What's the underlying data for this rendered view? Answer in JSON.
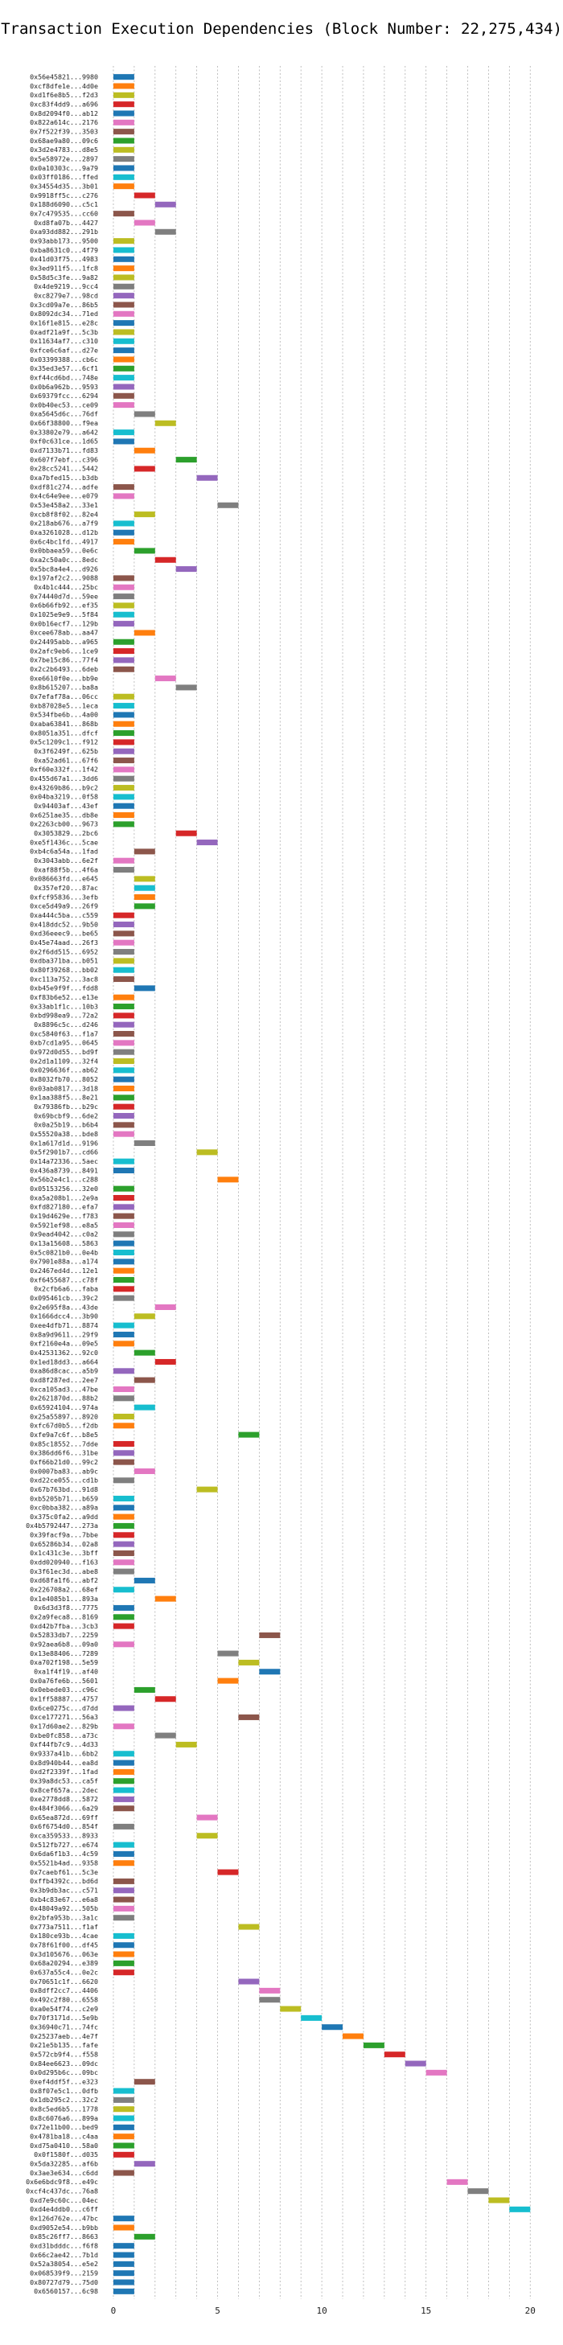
{
  "chart_data": {
    "type": "bar",
    "orientation": "horizontal-gantt",
    "title": "Transaction Execution Dependencies (Block Number: 22,275,434)",
    "xlabel": "",
    "ylabel": "",
    "xlim": [
      -0.5,
      20.8
    ],
    "xticks": [
      0,
      5,
      10,
      15,
      20
    ],
    "grid": "x-dashed",
    "legend": "none",
    "palette": [
      "#1f77b4",
      "#ff7f0e",
      "#2ca02c",
      "#d62728",
      "#9467bd",
      "#8c564b",
      "#e377c2",
      "#7f7f7f",
      "#bcbd22",
      "#17becf"
    ],
    "labels": [
      "0x56e45821...9980",
      "0xcf8dfe1e...4d0e",
      "0xd1f6e8b5...f2d3",
      "0xc83f4dd9...a696",
      "0x8d2094f0...ab12",
      "0x822a614c...2176",
      "0x7f522f39...3503",
      "0x68ae9a80...09c6",
      "0x3d2e4783...d8e5",
      "0x5e58972e...2897",
      "0x0a10303c...9a79",
      "0x03ff0186...ffed",
      "0x34554d35...3b01",
      "0x9918ff5c...c276",
      "0x188d6090...c5c1",
      "0x7c479535...cc60",
      "0xd8fa07b...4427",
      "0xa93dd882...291b",
      "0x93abb173...9500",
      "0xba8631c0...4f79",
      "0x41d03f75...4983",
      "0x3ed911f5...1fc8",
      "0x58d5c3fe...9a82",
      "0x4de9219...9cc4",
      "0xc8279e7...98cd",
      "0x3cd09a7e...86b5",
      "0x8092dc34...71ed",
      "0x16f1e815...e28c",
      "0xadf21a9f...5c3b",
      "0x11634af7...c310",
      "0xfce6c6af...d27e",
      "0x03399388...cb6c",
      "0x35ed3e57...6cf1",
      "0xf44cd6bd...748e",
      "0x0b6a962b...9593",
      "0x69379fcc...6294",
      "0x0b40ec53...ce09",
      "0xa5645d6c...76df",
      "0x66f38800...f9ea",
      "0x33802e79...a642",
      "0xf0c631ce...1d65",
      "0xd7133b71...fd83",
      "0x607f7ebf...c396",
      "0x28cc5241...5442",
      "0xa7bfed15...b3db",
      "0xdf81c274...adfe",
      "0x4c64e9ee...e079",
      "0x53e458a2...33e1",
      "0xcb8f8f02...82e4",
      "0x218ab676...a7f9",
      "0xa3261028...d12b",
      "0x6c4bc1fd...4917",
      "0x0bbaea59...0e6c",
      "0xa2c50a0c...8edc",
      "0x5bc8a4e4...d926",
      "0x197af2c2...9088",
      "0x4b1c444...25bc",
      "0x74440d7d...59ee",
      "0x6b66fb92...ef35",
      "0x1025e9e9...5f84",
      "0x0b16ecf7...129b",
      "0xcee678ab...aa47",
      "0x24495abb...a965",
      "0x2afc9eb6...1ce9",
      "0x7be15c86...77f4",
      "0x2c2b6493...6deb",
      "0xe6610f0e...bb9e",
      "0x8b615207...ba8a",
      "0x7efaf78a...06cc",
      "0xb87028e5...1eca",
      "0x534fbe6b...4a00",
      "0xaba63841...868b",
      "0x8051a351...dfcf",
      "0x5c1209c1...f912",
      "0x3f6249f...625b",
      "0xa52ad61...67f6",
      "0xf60e332f...1f42",
      "0x455d67a1...3dd6",
      "0x43269b86...b9c2",
      "0x04ba3219...0f58",
      "0x94403af...43ef",
      "0x6251ae35...db8e",
      "0x2263cb00...9673",
      "0x3053829...2bc6",
      "0xe5f1436c...5cae",
      "0xb4c6a54a...1fad",
      "0x3043abb...6e2f",
      "0xaf88f5b...4f6a",
      "0x086663fd...e645",
      "0x357ef20...87ac",
      "0xfcf95836...3efb",
      "0xce5d49a9...26f9",
      "0xa444c5ba...c559",
      "0x418ddc52...9b50",
      "0xd36eeec9...be65",
      "0x45e74aad...26f3",
      "0x2f6dd515...6952",
      "0xdba371ba...b051",
      "0x80f39268...bb02",
      "0xc113a752...3ac8",
      "0xb45e9f9f...fdd8",
      "0xf83b6e52...e13e",
      "0x33ab1f1c...10b3",
      "0xbd998ea9...72a2",
      "0x8896c5c...d246",
      "0xc5840f63...f1a7",
      "0xb7cd1a95...0645",
      "0x972d0d55...bd9f",
      "0x2d1a1109...32f4",
      "0x0296636f...ab62",
      "0x8032fb70...8052",
      "0x03ab0817...3d18",
      "0x1aa388f5...8e21",
      "0x79386fb...b29c",
      "0x69bcbf9...6de2",
      "0x0a25b19...b6b4",
      "0x55520a38...bde8",
      "0x1a617d1d...9196",
      "0x5f2901b7...cd66",
      "0x14a72336...5aec",
      "0x436a8739...8491",
      "0x56b2e4c1...c288",
      "0x05153256...32e0",
      "0xa5a208b1...2e9a",
      "0xfd827180...efa7",
      "0x19d4629e...f783",
      "0x5921ef98...e8a5",
      "0x9ead4042...c0a2",
      "0x13a15608...5863",
      "0x5c0821b0...0e4b",
      "0x7901e88a...a174",
      "0x2467ed4d...12e1",
      "0xf6455687...c78f",
      "0x2cfb6a6...faba",
      "0x095461cb...39c2",
      "0x2e695f8a...43de",
      "0x1666dcc4...3b90",
      "0xee4dfb71...8874",
      "0x8a9d9611...29f9",
      "0xf2160e4a...09e5",
      "0x42531362...92c0",
      "0x1ed18dd3...a664",
      "0xa86d8cac...a5b9",
      "0xd8f287ed...2ee7",
      "0xca105ad3...47be",
      "0x2621870d...88b2",
      "0x65924104...974a",
      "0x25a55897...8920",
      "0xfc67d0b5...f2db",
      "0xfe9a7c6f...b8e5",
      "0x85c18552...7dde",
      "0x386dd6f6...31be",
      "0xf66b21d0...99c2",
      "0x0007ba83...ab9c",
      "0xd22ce055...cd1b",
      "0x67b763bd...91d8",
      "0xb5205b71...b659",
      "0xc0bba382...a89a",
      "0x375c0fa2...a9dd",
      "0x4b5792447...273a",
      "0x39facf9a...7bbe",
      "0x65286b34...02a8",
      "0x1c431c3e...3bff",
      "0xdd020940...f163",
      "0x3f61ec3d...abe8",
      "0xd68fa1f6...abf2",
      "0x226708a2...68ef",
      "0x1e4085b1...893a",
      "0x6d3d3f8...7775",
      "0x2a9feca8...8169",
      "0xd42b7fba...3cb3",
      "0x52833db7...2259",
      "0x92aea6b8...09a0",
      "0x13e88406...7289",
      "0xa702f198...5e59",
      "0xa1f4f19...af40",
      "0x0a76fe6b...5601",
      "0x0ebede03...c96c",
      "0x1ff58887...4757",
      "0x6ce0275c...d7dd",
      "0xce177271...56a3",
      "0x17d60ae2...829b",
      "0xbe0fc858...a73c",
      "0xf44fb7c9...4d33",
      "0x9337a41b...6bb2",
      "0x8d940b44...ea8d",
      "0xd2f2339f...1fad",
      "0x39a8dc53...ca5f",
      "0x8cef657a...2dec",
      "0xe2778dd8...5872",
      "0x484f3066...6a29",
      "0x65ea872d...69ff",
      "0x6f6754d0...854f",
      "0xca359533...8933",
      "0x512fb727...e674",
      "0x6da6f1b3...4c59",
      "0x5521b4ad...9358",
      "0x7caebf61...5c3e",
      "0xffb4392c...bd6d",
      "0x3b9db3ac...c571",
      "0xb4c83e67...e6a8",
      "0x48049a92...505b",
      "0x2bfa953b...3a1c",
      "0x773a7511...f1af",
      "0x180ce93b...4cae",
      "0x78f61f00...df45",
      "0x3d105676...063e",
      "0x68a20294...e389",
      "0x637a55c4...0e2c",
      "0x70651c1f...6620",
      "0x8dff2cc7...4406",
      "0x492c2f80...6558",
      "0xa0e54f74...c2e9",
      "0x70f3171d...5e9b",
      "0x36940c71...74fc",
      "0x25237aeb...4e7f",
      "0x21e5b135...fafe",
      "0x572cb9f4...f558",
      "0x84ee6623...09dc",
      "0x0d295b6c...09bc",
      "0xef4ddf5f...e323",
      "0x8f07e5c1...0dfb",
      "0x1db295c2...32c2",
      "0x8c5ed6b5...1778",
      "0x8c6076a6...899a",
      "0x72e11b00...bed9",
      "0x4781ba18...c4aa",
      "0xd75a0410...58a0",
      "0x0f1580f...d035",
      "0x5da32285...af6b",
      "0x3ae3e634...c6dd",
      "0x6e6bdc9f8...e49c",
      "0xcf4c437dc...76a8",
      "0xd7e9c60c...04ec",
      "0xd4e4ddb0...c6ff",
      "0x126d762e...47bc",
      "0xd9052e54...b9bb",
      "0x85c26ff7...8663",
      "0xd31bdddc...f6f8",
      "0x66c2ae42...7b1d",
      "0x52a38054...e5e2",
      "0x068539f9...2159",
      "0x80727d79...75d0",
      "0x6560157...6c98"
    ],
    "bars": [
      [
        0,
        0
      ],
      [
        0,
        1
      ],
      [
        0,
        8
      ],
      [
        0,
        3
      ],
      [
        0,
        0
      ],
      [
        0,
        6
      ],
      [
        0,
        5
      ],
      [
        0,
        2
      ],
      [
        0,
        8
      ],
      [
        0,
        7
      ],
      [
        0,
        0
      ],
      [
        0,
        9
      ],
      [
        0,
        1
      ],
      [
        1,
        3
      ],
      [
        2,
        4
      ],
      [
        0,
        5
      ],
      [
        1,
        6
      ],
      [
        2,
        7
      ],
      [
        0,
        8
      ],
      [
        0,
        9
      ],
      [
        0,
        0
      ],
      [
        0,
        1
      ],
      [
        0,
        8
      ],
      [
        0,
        7
      ],
      [
        0,
        4
      ],
      [
        0,
        5
      ],
      [
        0,
        6
      ],
      [
        0,
        0
      ],
      [
        0,
        8
      ],
      [
        0,
        9
      ],
      [
        0,
        0
      ],
      [
        0,
        1
      ],
      [
        0,
        2
      ],
      [
        0,
        9
      ],
      [
        0,
        4
      ],
      [
        0,
        5
      ],
      [
        0,
        6
      ],
      [
        1,
        7
      ],
      [
        2,
        8
      ],
      [
        0,
        9
      ],
      [
        0,
        0
      ],
      [
        1,
        1
      ],
      [
        3,
        2
      ],
      [
        1,
        3
      ],
      [
        4,
        4
      ],
      [
        0,
        5
      ],
      [
        0,
        6
      ],
      [
        5,
        7
      ],
      [
        1,
        8
      ],
      [
        0,
        9
      ],
      [
        0,
        0
      ],
      [
        0,
        1
      ],
      [
        1,
        2
      ],
      [
        2,
        3
      ],
      [
        3,
        4
      ],
      [
        0,
        5
      ],
      [
        0,
        6
      ],
      [
        0,
        7
      ],
      [
        0,
        8
      ],
      [
        0,
        9
      ],
      [
        0,
        4
      ],
      [
        1,
        1
      ],
      [
        0,
        2
      ],
      [
        0,
        3
      ],
      [
        0,
        4
      ],
      [
        0,
        5
      ],
      [
        2,
        6
      ],
      [
        3,
        7
      ],
      [
        0,
        8
      ],
      [
        0,
        9
      ],
      [
        0,
        0
      ],
      [
        0,
        1
      ],
      [
        0,
        2
      ],
      [
        0,
        3
      ],
      [
        0,
        4
      ],
      [
        0,
        5
      ],
      [
        0,
        6
      ],
      [
        0,
        7
      ],
      [
        0,
        8
      ],
      [
        0,
        9
      ],
      [
        0,
        0
      ],
      [
        0,
        1
      ],
      [
        0,
        2
      ],
      [
        3,
        3
      ],
      [
        4,
        4
      ],
      [
        1,
        5
      ],
      [
        0,
        6
      ],
      [
        0,
        7
      ],
      [
        1,
        8
      ],
      [
        1,
        9
      ],
      [
        1,
        1
      ],
      [
        1,
        2
      ],
      [
        0,
        3
      ],
      [
        0,
        4
      ],
      [
        0,
        5
      ],
      [
        0,
        6
      ],
      [
        0,
        7
      ],
      [
        0,
        8
      ],
      [
        0,
        9
      ],
      [
        0,
        5
      ],
      [
        1,
        0
      ],
      [
        0,
        1
      ],
      [
        0,
        2
      ],
      [
        0,
        3
      ],
      [
        0,
        4
      ],
      [
        0,
        5
      ],
      [
        0,
        6
      ],
      [
        0,
        7
      ],
      [
        0,
        8
      ],
      [
        0,
        9
      ],
      [
        0,
        0
      ],
      [
        0,
        1
      ],
      [
        0,
        2
      ],
      [
        0,
        3
      ],
      [
        0,
        4
      ],
      [
        0,
        5
      ],
      [
        0,
        6
      ],
      [
        1,
        7
      ],
      [
        4,
        8
      ],
      [
        0,
        9
      ],
      [
        0,
        0
      ],
      [
        5,
        1
      ],
      [
        0,
        2
      ],
      [
        0,
        3
      ],
      [
        0,
        4
      ],
      [
        0,
        5
      ],
      [
        0,
        6
      ],
      [
        0,
        7
      ],
      [
        0,
        0
      ],
      [
        0,
        9
      ],
      [
        0,
        0
      ],
      [
        0,
        1
      ],
      [
        0,
        2
      ],
      [
        0,
        3
      ],
      [
        0,
        7
      ],
      [
        2,
        6
      ],
      [
        1,
        8
      ],
      [
        0,
        9
      ],
      [
        0,
        0
      ],
      [
        0,
        1
      ],
      [
        1,
        2
      ],
      [
        2,
        3
      ],
      [
        0,
        4
      ],
      [
        1,
        5
      ],
      [
        0,
        6
      ],
      [
        0,
        7
      ],
      [
        1,
        9
      ],
      [
        0,
        8
      ],
      [
        0,
        1
      ],
      [
        6,
        2
      ],
      [
        0,
        3
      ],
      [
        0,
        4
      ],
      [
        0,
        5
      ],
      [
        1,
        6
      ],
      [
        0,
        7
      ],
      [
        4,
        8
      ],
      [
        0,
        9
      ],
      [
        0,
        0
      ],
      [
        0,
        1
      ],
      [
        0,
        2
      ],
      [
        0,
        3
      ],
      [
        0,
        4
      ],
      [
        0,
        5
      ],
      [
        0,
        6
      ],
      [
        0,
        7
      ],
      [
        1,
        0
      ],
      [
        0,
        9
      ],
      [
        2,
        1
      ],
      [
        0,
        0
      ],
      [
        0,
        2
      ],
      [
        0,
        3
      ],
      [
        7,
        5
      ],
      [
        0,
        6
      ],
      [
        5,
        7
      ],
      [
        6,
        8
      ],
      [
        7,
        0
      ],
      [
        5,
        1
      ],
      [
        1,
        2
      ],
      [
        2,
        3
      ],
      [
        0,
        4
      ],
      [
        6,
        5
      ],
      [
        0,
        6
      ],
      [
        2,
        7
      ],
      [
        3,
        8
      ],
      [
        0,
        9
      ],
      [
        0,
        0
      ],
      [
        0,
        1
      ],
      [
        0,
        2
      ],
      [
        0,
        9
      ],
      [
        0,
        4
      ],
      [
        0,
        5
      ],
      [
        4,
        6
      ],
      [
        0,
        7
      ],
      [
        4,
        8
      ],
      [
        0,
        9
      ],
      [
        0,
        0
      ],
      [
        0,
        1
      ],
      [
        5,
        3
      ],
      [
        0,
        5
      ],
      [
        0,
        4
      ],
      [
        0,
        5
      ],
      [
        0,
        6
      ],
      [
        0,
        7
      ],
      [
        6,
        8
      ],
      [
        0,
        9
      ],
      [
        0,
        0
      ],
      [
        0,
        1
      ],
      [
        0,
        2
      ],
      [
        0,
        3
      ],
      [
        6,
        4
      ],
      [
        7,
        6
      ],
      [
        7,
        7
      ],
      [
        8,
        8
      ],
      [
        9,
        9
      ],
      [
        10,
        0
      ],
      [
        11,
        1
      ],
      [
        12,
        2
      ],
      [
        13,
        3
      ],
      [
        14,
        4
      ],
      [
        15,
        6
      ],
      [
        1,
        5
      ],
      [
        0,
        9
      ],
      [
        0,
        7
      ],
      [
        0,
        8
      ],
      [
        0,
        9
      ],
      [
        0,
        0
      ],
      [
        0,
        1
      ],
      [
        0,
        2
      ],
      [
        0,
        3
      ],
      [
        1,
        4
      ],
      [
        0,
        5
      ],
      [
        16,
        6
      ],
      [
        17,
        7
      ],
      [
        18,
        8
      ],
      [
        19,
        9
      ],
      [
        0,
        0
      ],
      [
        0,
        1
      ],
      [
        1,
        2
      ]
    ],
    "bar_duration": 1
  }
}
